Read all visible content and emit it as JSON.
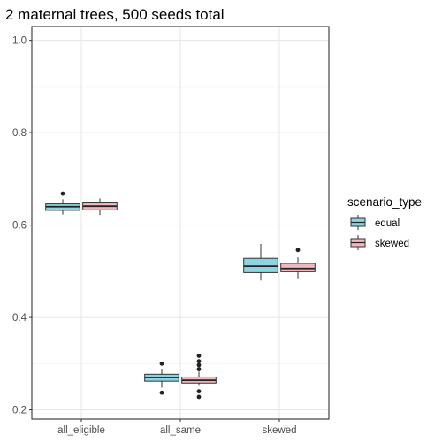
{
  "chart_data": {
    "type": "boxplot",
    "title": "2 maternal trees, 500 seeds total",
    "xlabel": "",
    "ylabel": "",
    "ylim": [
      0.18,
      1.03
    ],
    "y_ticks": [
      0.2,
      0.4,
      0.6,
      0.8,
      1.0
    ],
    "y_tick_labels": [
      "0.2",
      "0.4",
      "0.6",
      "0.8",
      "1.0"
    ],
    "categories": [
      "all_eligible",
      "all_same",
      "skewed"
    ],
    "grid": true,
    "legend": {
      "title": "scenario_type",
      "position": "right"
    },
    "series": [
      {
        "name": "equal",
        "color": "#8dd3e0",
        "boxes": [
          {
            "category": "all_eligible",
            "whisker_low": 0.623,
            "q1": 0.632,
            "median": 0.64,
            "q3": 0.646,
            "whisker_high": 0.656,
            "outliers": [
              0.668
            ]
          },
          {
            "category": "all_same",
            "whisker_low": 0.248,
            "q1": 0.262,
            "median": 0.27,
            "q3": 0.277,
            "whisker_high": 0.289,
            "outliers": [
              0.237,
              0.3
            ]
          },
          {
            "category": "skewed",
            "whisker_low": 0.48,
            "q1": 0.497,
            "median": 0.511,
            "q3": 0.528,
            "whisker_high": 0.559,
            "outliers": []
          }
        ]
      },
      {
        "name": "skewed",
        "color": "#f4b6be",
        "boxes": [
          {
            "category": "all_eligible",
            "whisker_low": 0.622,
            "q1": 0.633,
            "median": 0.641,
            "q3": 0.648,
            "whisker_high": 0.658,
            "outliers": []
          },
          {
            "category": "all_same",
            "whisker_low": 0.252,
            "q1": 0.258,
            "median": 0.264,
            "q3": 0.271,
            "whisker_high": 0.283,
            "outliers": [
              0.228,
              0.24,
              0.288,
              0.297,
              0.305,
              0.317
            ]
          },
          {
            "category": "skewed",
            "whisker_low": 0.483,
            "q1": 0.499,
            "median": 0.506,
            "q3": 0.517,
            "whisker_high": 0.53,
            "outliers": [
              0.546
            ]
          }
        ]
      }
    ]
  }
}
